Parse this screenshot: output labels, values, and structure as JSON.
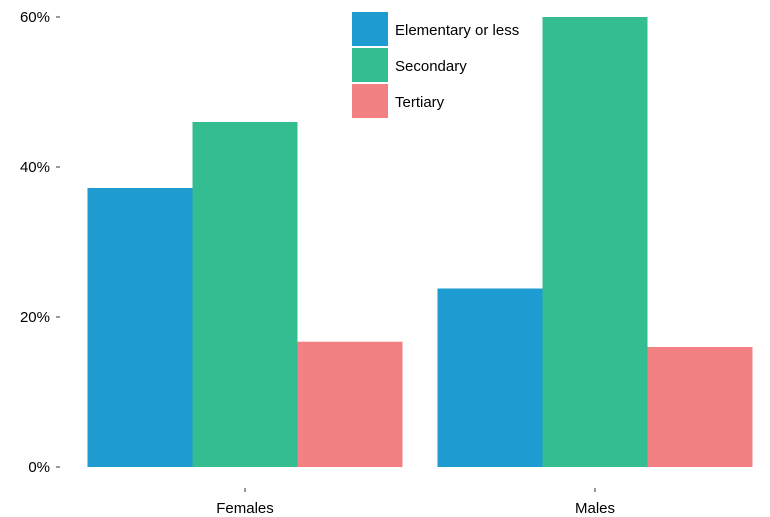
{
  "chart_data": {
    "type": "bar",
    "categories": [
      "Females",
      "Males"
    ],
    "series": [
      {
        "name": "Elementary or less",
        "values": [
          37.2,
          23.8
        ],
        "color": "#1E9BD0"
      },
      {
        "name": "Secondary",
        "values": [
          46.0,
          60.0
        ],
        "color": "#35BD92"
      },
      {
        "name": "Tertiary",
        "values": [
          16.7,
          16.0
        ],
        "color": "#F38083"
      }
    ],
    "y_ticks": [
      {
        "value": 0,
        "label": "0%"
      },
      {
        "value": 20,
        "label": "20%"
      },
      {
        "value": 40,
        "label": "40%"
      },
      {
        "value": 60,
        "label": "60%"
      }
    ],
    "ylim": [
      0,
      60
    ],
    "grid": false,
    "legend_position": "top-right"
  }
}
